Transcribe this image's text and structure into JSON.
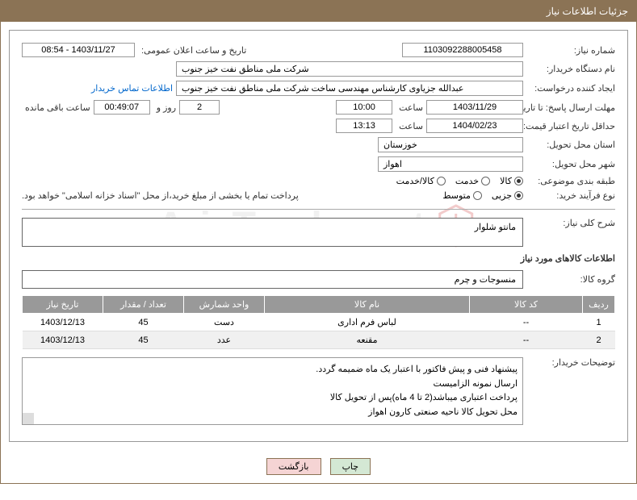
{
  "header": {
    "title": "جزئیات اطلاعات نیاز"
  },
  "fields": {
    "need_number_label": "شماره نیاز:",
    "need_number": "1103092288005458",
    "announce_label": "تاریخ و ساعت اعلان عمومی:",
    "announce_value": "1403/11/27 - 08:54",
    "buyer_org_label": "نام دستگاه خریدار:",
    "buyer_org": "شرکت ملی مناطق نفت خیز جنوب",
    "requester_label": "ایجاد کننده درخواست:",
    "requester": "عبدالله جزیاوی کارشناس مهندسی ساخت شرکت ملی مناطق نفت خیز جنوب",
    "contact_link": "اطلاعات تماس خریدار",
    "deadline_label": "مهلت ارسال پاسخ: تا تاریخ:",
    "deadline_date": "1403/11/29",
    "time_label": "ساعت",
    "deadline_time": "10:00",
    "days": "2",
    "days_label": "روز و",
    "remaining_time": "00:49:07",
    "remaining_label": "ساعت باقی مانده",
    "validity_label": "حداقل تاریخ اعتبار قیمت: تا تاریخ:",
    "validity_date": "1404/02/23",
    "validity_time": "13:13",
    "province_label": "استان محل تحویل:",
    "province": "خوزستان",
    "city_label": "شهر محل تحویل:",
    "city": "اهواز",
    "category_label": "طبقه بندی موضوعی:",
    "process_label": "نوع فرآیند خرید:",
    "payment_note": "پرداخت تمام یا بخشی از مبلغ خرید،از محل \"اسناد خزانه اسلامی\" خواهد بود.",
    "desc_label": "شرح کلی نیاز:",
    "desc": "مانتو شلوار",
    "items_section": "اطلاعات کالاهای مورد نیاز",
    "group_label": "گروه کالا:",
    "group": "منسوجات و چرم",
    "buyer_notes_label": "توضیحات خریدار:"
  },
  "radios": {
    "cat_goods": "کالا",
    "cat_service": "خدمت",
    "cat_both": "کالا/خدمت",
    "proc_small": "جزیی",
    "proc_medium": "متوسط"
  },
  "table": {
    "headers": [
      "ردیف",
      "کد کالا",
      "نام کالا",
      "واحد شمارش",
      "تعداد / مقدار",
      "تاریخ نیاز"
    ],
    "col_widths": [
      "40px",
      "140px",
      "auto",
      "100px",
      "100px",
      "100px"
    ],
    "rows": [
      [
        "1",
        "--",
        "لباس فرم اداری",
        "دست",
        "45",
        "1403/12/13"
      ],
      [
        "2",
        "--",
        "مقنعه",
        "عدد",
        "45",
        "1403/12/13"
      ]
    ]
  },
  "notes": [
    "پیشنهاد فنی و پیش فاکتور با اعتبار یک ماه ضمیمه گردد.",
    "ارسال نمونه الزامیست",
    "پرداخت اعتباری میباشد(2 تا 4 ماه)پس از تحویل کالا",
    "محل تحویل کالا ناحیه صنعتی کارون اهواز"
  ],
  "buttons": {
    "print": "چاپ",
    "back": "بازگشت"
  },
  "colors": {
    "header_bg": "#8b7355",
    "border": "#999999",
    "th_bg": "#999999",
    "link": "#0066cc"
  }
}
